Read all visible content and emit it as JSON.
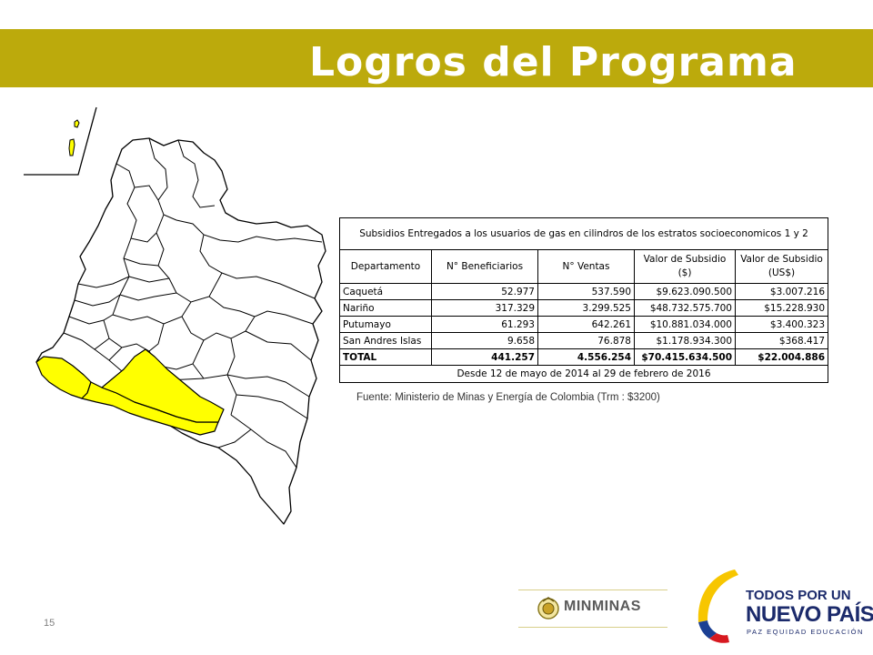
{
  "slide": {
    "title": "Logros del Programa",
    "page_number": "15",
    "accent_color": "#bcaa0c",
    "highlight_color": "#ffff00"
  },
  "table": {
    "caption": "Subsidios Entregados a los usuarios de gas en cilindros de los estratos socioeconomicos 1 y 2",
    "headers": [
      "Departamento",
      "N° Beneficiarios",
      "N° Ventas",
      "Valor de Subsidio ($)",
      "Valor de Subsidio (US$)"
    ],
    "rows": [
      [
        "Caquetá",
        "52.977",
        "537.590",
        "$9.623.090.500",
        "$3.007.216"
      ],
      [
        "Nariño",
        "317.329",
        "3.299.525",
        "$48.732.575.700",
        "$15.228.930"
      ],
      [
        "Putumayo",
        "61.293",
        "642.261",
        "$10.881.034.000",
        "$3.400.323"
      ],
      [
        "San Andres Islas",
        "9.658",
        "76.878",
        "$1.178.934.300",
        "$368.417"
      ]
    ],
    "total": [
      "TOTAL",
      "441.257",
      "4.556.254",
      "$70.415.634.500",
      "$22.004.886"
    ],
    "period": "Desde 12 de mayo de 2014 al 29 de febrero de 2016"
  },
  "source_note": "Fuente: Ministerio de Minas y Energía de Colombia (Trm : $3200)",
  "map": {
    "highlighted_departments": [
      "Nariño",
      "Putumayo",
      "Caquetá",
      "San Andres Islas"
    ]
  },
  "logos": {
    "minminas": "MINMINAS",
    "tpun_line1": "TODOS POR UN",
    "tpun_line2": "NUEVO PAÍS",
    "tpun_line3": "PAZ  EQUIDAD  EDUCACIÓN"
  }
}
